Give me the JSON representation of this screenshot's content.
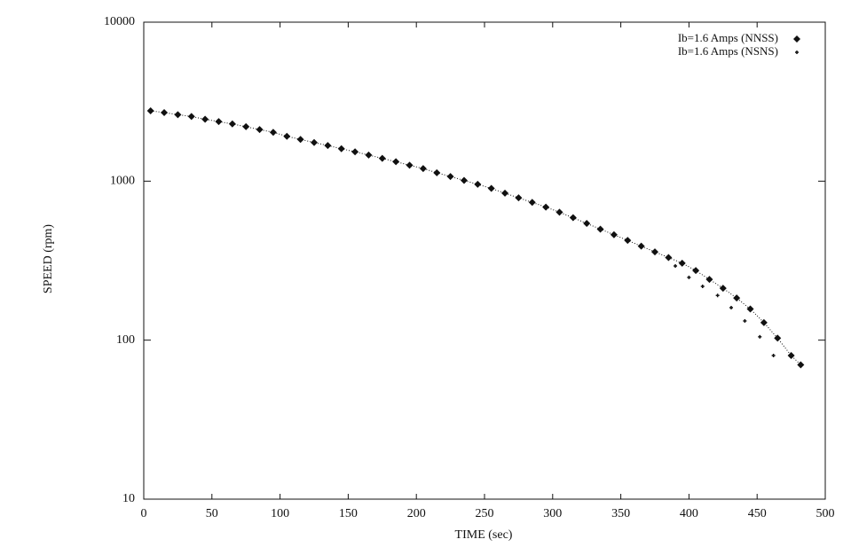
{
  "chart_data": {
    "type": "scatter",
    "xlabel": "TIME (sec)",
    "ylabel": "SPEED (rpm)",
    "xlim": [
      0,
      500
    ],
    "ylim": [
      10,
      10000
    ],
    "yscale": "log",
    "xticks": [
      0,
      50,
      100,
      150,
      200,
      250,
      300,
      350,
      400,
      450,
      500
    ],
    "yticks": [
      10,
      100,
      1000,
      10000
    ],
    "legend": "upper right",
    "series": [
      {
        "name": "Ib=1.6 Amps (NNSS)",
        "color": "#111111",
        "marker": "diamond",
        "line": "dotted",
        "x": [
          5,
          15,
          25,
          35,
          45,
          55,
          65,
          75,
          85,
          95,
          105,
          115,
          125,
          135,
          145,
          155,
          165,
          175,
          185,
          195,
          205,
          215,
          225,
          235,
          245,
          255,
          265,
          275,
          285,
          295,
          305,
          315,
          325,
          335,
          345,
          355,
          365,
          375,
          385,
          395,
          405,
          415,
          425,
          435,
          445,
          455,
          465,
          475,
          482
        ],
        "values": [
          2770,
          2700,
          2620,
          2550,
          2450,
          2370,
          2290,
          2200,
          2110,
          2030,
          1915,
          1830,
          1750,
          1675,
          1600,
          1530,
          1460,
          1390,
          1325,
          1260,
          1200,
          1130,
          1070,
          1010,
          955,
          900,
          840,
          785,
          735,
          687,
          638,
          589,
          542,
          499,
          460,
          424,
          390,
          359,
          331,
          305,
          274,
          241,
          212,
          184,
          157,
          129,
          103,
          80,
          70
        ]
      },
      {
        "name": "Ib=1.6 Amps (NSNS)",
        "color": "#111111",
        "marker": "plus",
        "x": [
          5,
          15,
          25,
          35,
          45,
          55,
          65,
          75,
          85,
          95,
          105,
          115,
          125,
          135,
          145,
          155,
          165,
          175,
          185,
          195,
          205,
          215,
          225,
          235,
          245,
          255,
          265,
          275,
          285,
          295,
          305,
          315,
          325,
          335,
          345,
          355,
          365,
          375,
          390,
          400,
          410,
          421,
          431,
          441,
          452,
          462
        ],
        "values": [
          2770,
          2700,
          2620,
          2550,
          2450,
          2370,
          2290,
          2200,
          2110,
          2030,
          1915,
          1830,
          1750,
          1675,
          1600,
          1530,
          1460,
          1390,
          1325,
          1260,
          1200,
          1130,
          1070,
          1010,
          955,
          900,
          840,
          785,
          735,
          687,
          638,
          589,
          542,
          499,
          460,
          424,
          390,
          359,
          293,
          248,
          218,
          191,
          160,
          132,
          105,
          80
        ]
      }
    ]
  }
}
